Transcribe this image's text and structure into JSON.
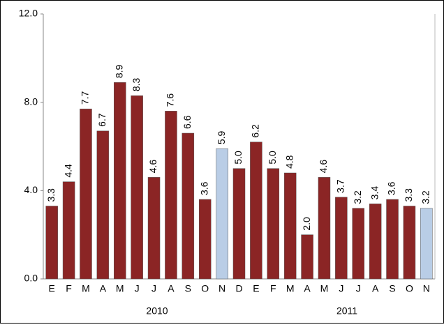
{
  "chart_data": {
    "type": "bar",
    "categories": [
      "E",
      "F",
      "M",
      "A",
      "M",
      "J",
      "J",
      "A",
      "S",
      "O",
      "N",
      "D",
      "E",
      "F",
      "M",
      "A",
      "M",
      "J",
      "J",
      "A",
      "S",
      "O",
      "N"
    ],
    "values": [
      3.3,
      4.4,
      7.7,
      6.7,
      8.9,
      8.3,
      4.6,
      7.6,
      6.6,
      3.6,
      5.9,
      5.0,
      6.2,
      5.0,
      4.8,
      2.0,
      4.6,
      3.7,
      3.2,
      3.4,
      3.6,
      3.3,
      3.2
    ],
    "value_labels": [
      "3.3",
      "4.4",
      "7.7",
      "6.7",
      "8.9",
      "8.3",
      "4.6",
      "7.6",
      "6.6",
      "3.6",
      "5.9",
      "5.0",
      "6.2",
      "5.0",
      "4.8",
      "2.0",
      "4.6",
      "3.7",
      "3.2",
      "3.4",
      "3.6",
      "3.3",
      "3.2"
    ],
    "colors": [
      "#8b2525",
      "#8b2525",
      "#8b2525",
      "#8b2525",
      "#8b2525",
      "#8b2525",
      "#8b2525",
      "#8b2525",
      "#8b2525",
      "#8b2525",
      "#b9cde6",
      "#8b2525",
      "#8b2525",
      "#8b2525",
      "#8b2525",
      "#8b2525",
      "#8b2525",
      "#8b2525",
      "#8b2525",
      "#8b2525",
      "#8b2525",
      "#8b2525",
      "#b9cde6"
    ],
    "x_groups": [
      "2010",
      "2011"
    ],
    "ylim": [
      0,
      12
    ],
    "yticks": [
      {
        "value": 0,
        "label": "0.0"
      },
      {
        "value": 4,
        "label": "4.0"
      },
      {
        "value": 8,
        "label": "8.0"
      },
      {
        "value": 12,
        "label": "12.0"
      }
    ]
  }
}
